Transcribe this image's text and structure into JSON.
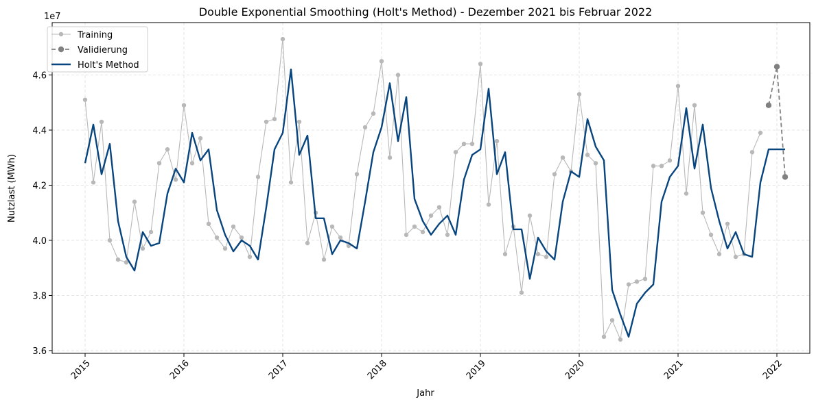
{
  "chart_data": {
    "type": "line",
    "title": "Double Exponential Smoothing (Holt's Method) - Dezember 2021 bis Februar 2022",
    "xlabel": "Jahr",
    "ylabel": "Nutzlast (MWh)",
    "y_offset_label": "1e7",
    "x_tick_labels": [
      "2015",
      "2016",
      "2017",
      "2018",
      "2019",
      "2020",
      "2021",
      "2022"
    ],
    "y_tick_labels": [
      "3.6",
      "3.8",
      "4.0",
      "4.2",
      "4.4",
      "4.6"
    ],
    "y_ticks": [
      3.6,
      3.8,
      4.0,
      4.2,
      4.4,
      4.6
    ],
    "ylim": [
      3.59,
      4.79
    ],
    "xlim": [
      "2014-09",
      "2022-05"
    ],
    "grid": true,
    "legend_position": "top-left",
    "colors": {
      "training": "#b8b8b8",
      "validation": "#808080",
      "holt": "#08457e"
    },
    "series": [
      {
        "name": "Training",
        "style": "line-marker",
        "start": "2015-01",
        "values": [
          4.51,
          4.21,
          4.43,
          4.0,
          3.93,
          3.92,
          4.14,
          3.97,
          4.03,
          4.28,
          4.33,
          4.22,
          4.49,
          4.28,
          4.37,
          4.06,
          4.01,
          3.97,
          4.05,
          4.01,
          3.94,
          4.23,
          4.43,
          4.44,
          4.73,
          4.21,
          4.43,
          3.99,
          4.1,
          3.93,
          4.05,
          4.01,
          3.98,
          4.24,
          4.41,
          4.46,
          4.65,
          4.3,
          4.6,
          4.02,
          4.05,
          4.03,
          4.09,
          4.12,
          4.02,
          4.32,
          4.35,
          4.35,
          4.64,
          4.13,
          4.36,
          3.95,
          4.05,
          3.81,
          4.09,
          3.95,
          3.94,
          4.24,
          4.3,
          4.25,
          4.53,
          4.31,
          4.28,
          3.65,
          3.71,
          3.64,
          3.84,
          3.85,
          3.86,
          4.27,
          4.27,
          4.29,
          4.56,
          4.17,
          4.49,
          4.1,
          4.02,
          3.95,
          4.06,
          3.94,
          3.95,
          4.32,
          4.39
        ]
      },
      {
        "name": "Validierung",
        "style": "dashed-marker",
        "start": "2021-12",
        "values": [
          4.49,
          4.63,
          4.23
        ]
      },
      {
        "name": "Holt's Method",
        "style": "line",
        "start": "2015-01",
        "values": [
          4.28,
          4.42,
          4.24,
          4.35,
          4.07,
          3.94,
          3.89,
          4.03,
          3.98,
          3.99,
          4.17,
          4.26,
          4.21,
          4.39,
          4.29,
          4.33,
          4.11,
          4.02,
          3.96,
          4.0,
          3.98,
          3.93,
          4.12,
          4.33,
          4.39,
          4.62,
          4.31,
          4.38,
          4.08,
          4.08,
          3.95,
          4.0,
          3.99,
          3.97,
          4.14,
          4.32,
          4.41,
          4.57,
          4.36,
          4.52,
          4.15,
          4.07,
          4.02,
          4.06,
          4.09,
          4.02,
          4.22,
          4.31,
          4.33,
          4.55,
          4.24,
          4.32,
          4.04,
          4.04,
          3.86,
          4.01,
          3.96,
          3.93,
          4.14,
          4.25,
          4.23,
          4.44,
          4.34,
          4.29,
          3.82,
          3.73,
          3.65,
          3.77,
          3.81,
          3.84,
          4.14,
          4.23,
          4.27,
          4.48,
          4.26,
          4.42,
          4.19,
          4.07,
          3.97,
          4.03,
          3.95,
          3.94,
          4.21,
          4.33,
          4.33,
          4.33
        ]
      }
    ]
  }
}
